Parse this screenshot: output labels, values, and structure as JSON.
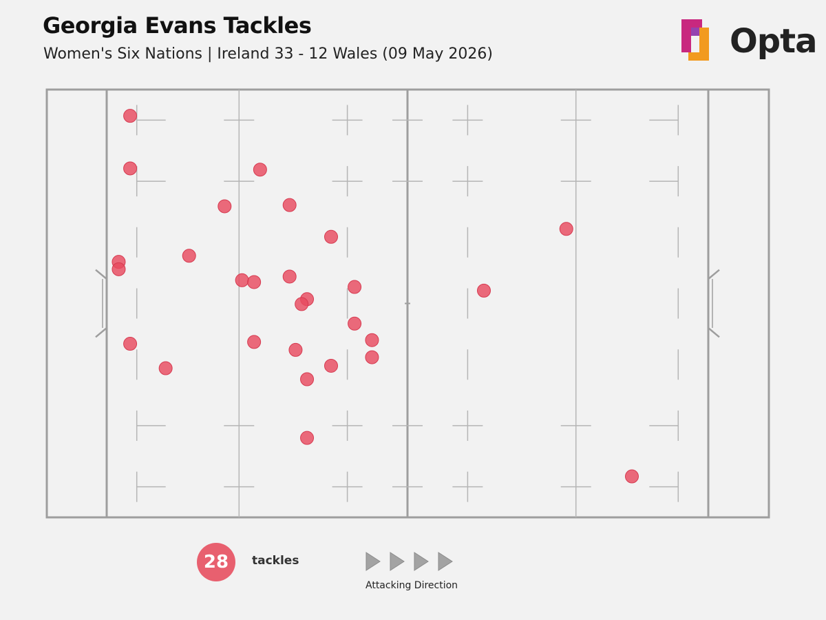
{
  "header": {
    "title": "Georgia Evans Tackles",
    "subtitle": "Women's Six Nations | Ireland 33 - 12 Wales (09 May 2026)"
  },
  "logo": {
    "text": "Opta",
    "colors": [
      "#e8336d",
      "#8b2fa8",
      "#f29a1f"
    ]
  },
  "chart_data": {
    "type": "scatter",
    "title": "Georgia Evans Tackles",
    "subtitle": "Women's Six Nations | Ireland 33 - 12 Wales (09 May 2026)",
    "x_unit": "metres from own try line (0-100)",
    "y_unit": "metres from top touchline (0-70)",
    "xlim": [
      0,
      100
    ],
    "ylim": [
      0,
      70
    ],
    "marker_color": "#e84a5f",
    "points": [
      {
        "x": 3.9,
        "y": 4.3
      },
      {
        "x": 3.9,
        "y": 12.9
      },
      {
        "x": 25.5,
        "y": 13.1
      },
      {
        "x": 19.6,
        "y": 19.1
      },
      {
        "x": 30.4,
        "y": 18.9
      },
      {
        "x": 37.3,
        "y": 24.1
      },
      {
        "x": 76.4,
        "y": 22.8
      },
      {
        "x": 13.7,
        "y": 27.2
      },
      {
        "x": 2.0,
        "y": 28.2
      },
      {
        "x": 2.0,
        "y": 29.4
      },
      {
        "x": 22.5,
        "y": 31.2
      },
      {
        "x": 24.5,
        "y": 31.5
      },
      {
        "x": 30.4,
        "y": 30.6
      },
      {
        "x": 41.2,
        "y": 32.3
      },
      {
        "x": 33.3,
        "y": 34.3
      },
      {
        "x": 32.4,
        "y": 35.1
      },
      {
        "x": 62.7,
        "y": 32.9
      },
      {
        "x": 41.2,
        "y": 38.3
      },
      {
        "x": 44.1,
        "y": 41.0
      },
      {
        "x": 44.1,
        "y": 43.8
      },
      {
        "x": 3.9,
        "y": 41.6
      },
      {
        "x": 24.5,
        "y": 41.3
      },
      {
        "x": 31.4,
        "y": 42.6
      },
      {
        "x": 9.8,
        "y": 45.6
      },
      {
        "x": 37.3,
        "y": 45.2
      },
      {
        "x": 33.3,
        "y": 47.4
      },
      {
        "x": 33.3,
        "y": 57.0
      },
      {
        "x": 87.3,
        "y": 63.3
      }
    ]
  },
  "summary": {
    "count": "28",
    "count_label": "tackles"
  },
  "direction": {
    "label": "Attacking Direction"
  }
}
